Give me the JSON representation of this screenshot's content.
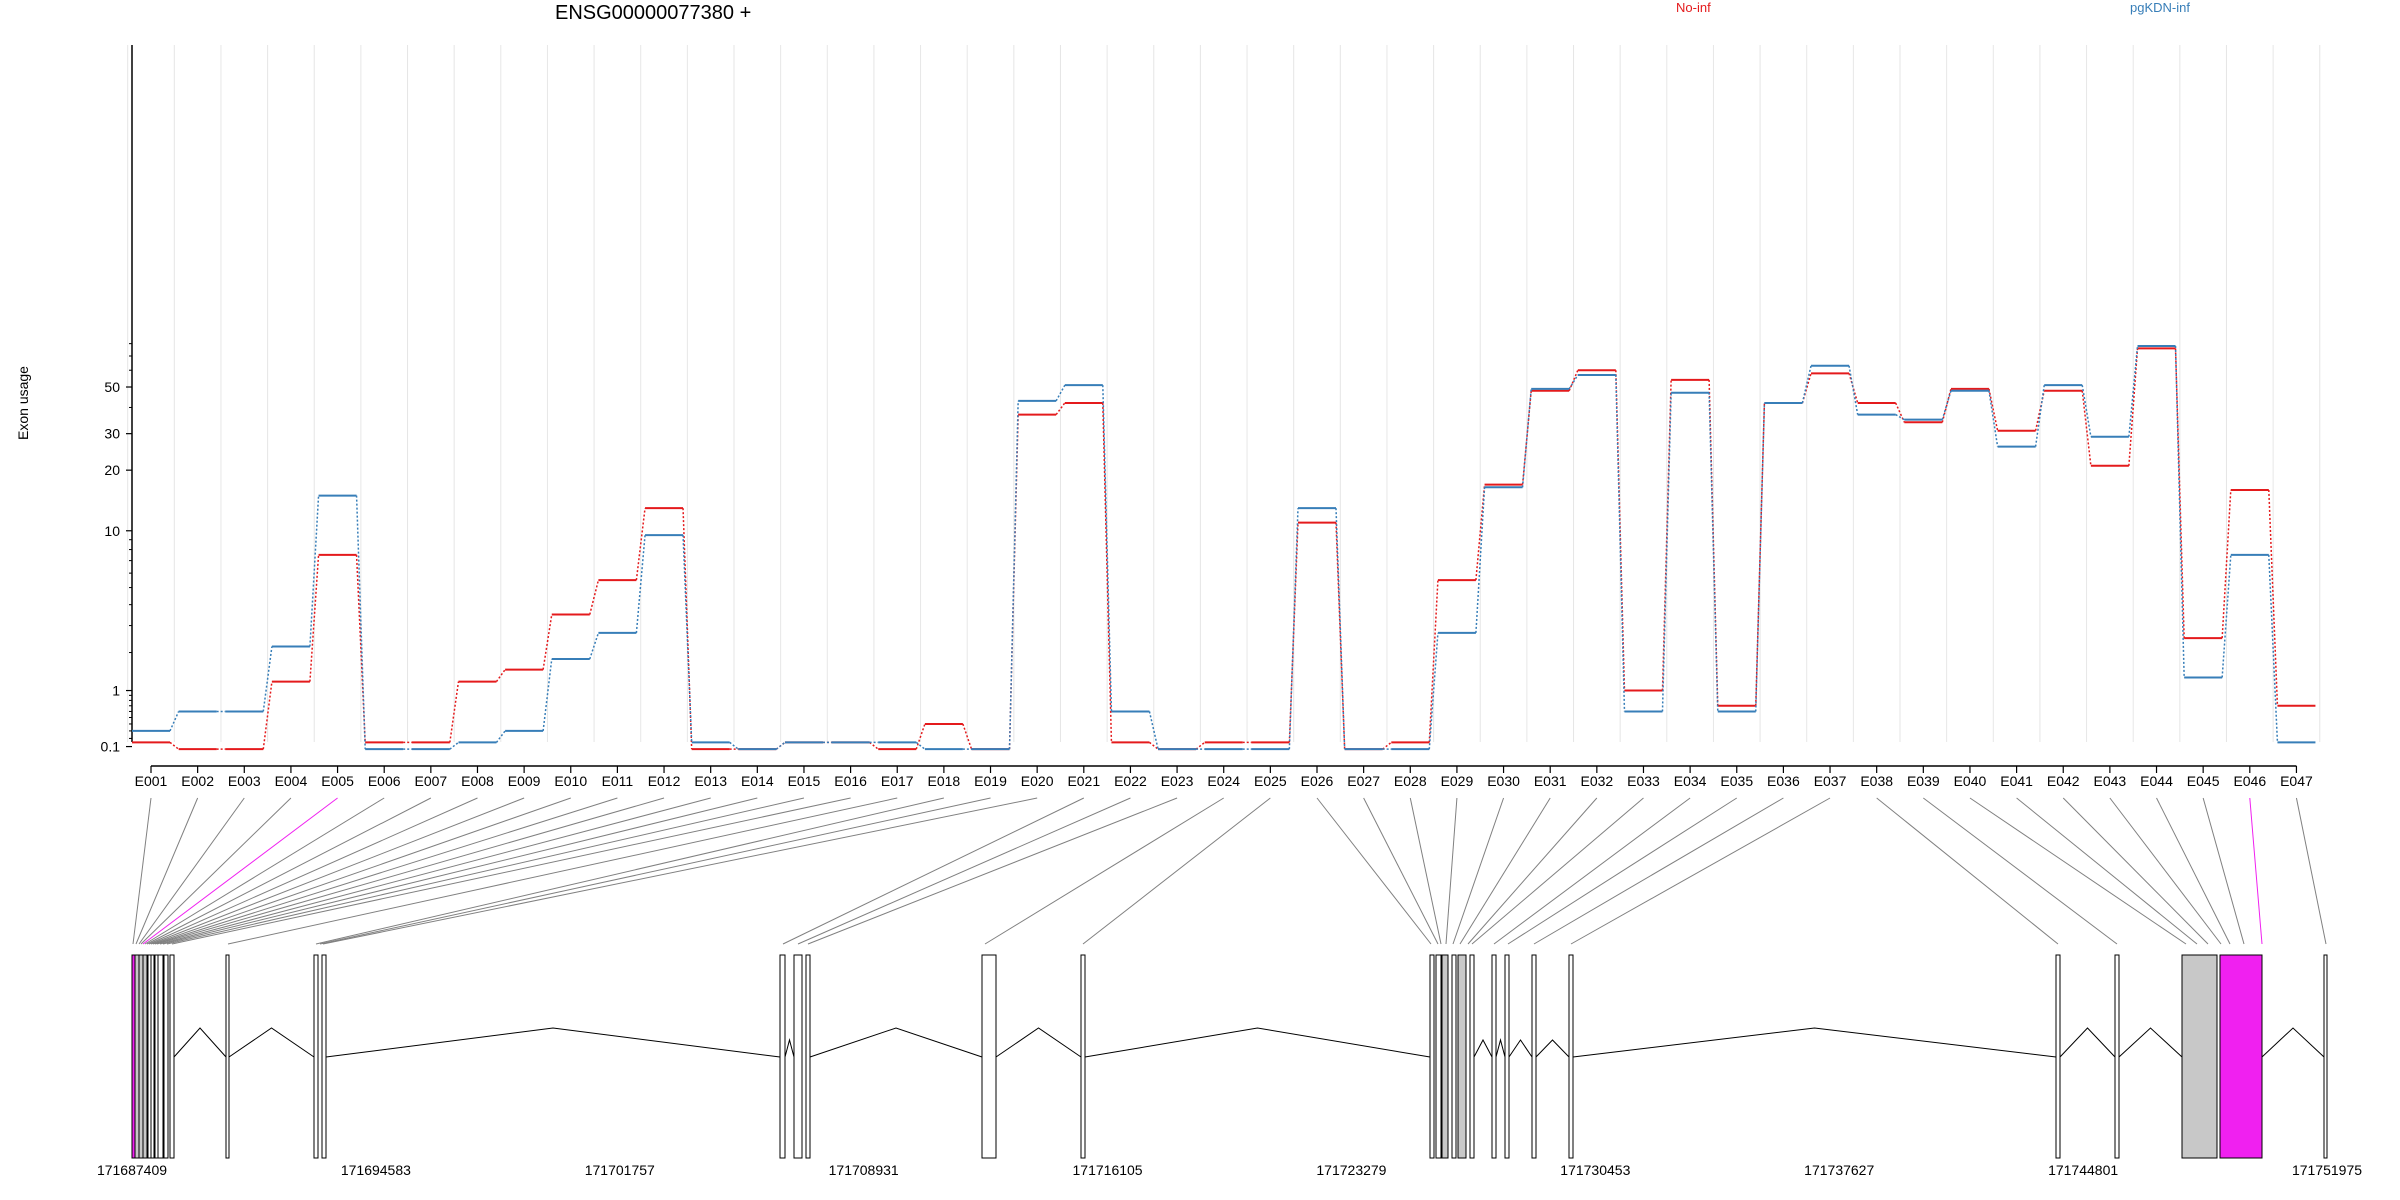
{
  "title": "ENSG00000077380 +",
  "ylabel": "Exon usage",
  "legend": [
    {
      "label": "No-inf",
      "color": "#e41a1c"
    },
    {
      "label": "pgKDN-inf",
      "color": "#377eb8"
    }
  ],
  "highlight_color": "#f020f0",
  "exon_fill": "#c8c8c8",
  "chart_data": {
    "type": "line",
    "title": "ENSG00000077380 +",
    "ylabel": "Exon usage",
    "xlabel": "",
    "yscale": "log(1+y)",
    "ylim": [
      0.07,
      90
    ],
    "yticks": [
      0.1,
      1,
      10,
      20,
      30,
      50
    ],
    "ytick_labels": [
      "0.1",
      "1",
      "10",
      "20",
      "30",
      "50"
    ],
    "categories": [
      "E001",
      "E002",
      "E003",
      "E004",
      "E005",
      "E006",
      "E007",
      "E008",
      "E009",
      "E010",
      "E011",
      "E012",
      "E013",
      "E014",
      "E015",
      "E016",
      "E017",
      "E018",
      "E019",
      "E020",
      "E021",
      "E022",
      "E023",
      "E024",
      "E025",
      "E026",
      "E027",
      "E028",
      "E029",
      "E030",
      "E031",
      "E032",
      "E033",
      "E034",
      "E035",
      "E036",
      "E037",
      "E038",
      "E039",
      "E040",
      "E041",
      "E042",
      "E043",
      "E044",
      "E045",
      "E046",
      "E047"
    ],
    "series": [
      {
        "name": "No-inf",
        "color": "#e41a1c",
        "values": [
          0.15,
          0.07,
          0.07,
          1.2,
          7.5,
          0.15,
          0.15,
          1.2,
          1.5,
          3.5,
          5.5,
          13,
          0.07,
          0.07,
          0.15,
          0.15,
          0.07,
          0.4,
          0.07,
          37,
          42,
          0.15,
          0.07,
          0.15,
          0.15,
          11,
          0.07,
          0.15,
          5.5,
          17,
          48,
          60,
          1.0,
          54,
          0.7,
          42,
          58,
          42,
          34,
          49,
          31,
          48,
          21,
          76,
          2.5,
          16,
          0.7
        ]
      },
      {
        "name": "pgKDN-inf",
        "color": "#377eb8",
        "values": [
          0.3,
          0.6,
          0.6,
          2.2,
          15,
          0.07,
          0.07,
          0.15,
          0.3,
          1.8,
          2.7,
          9.5,
          0.15,
          0.07,
          0.15,
          0.15,
          0.15,
          0.07,
          0.07,
          43,
          51,
          0.6,
          0.07,
          0.07,
          0.07,
          13,
          0.07,
          0.07,
          2.7,
          16.5,
          49,
          57,
          0.6,
          47,
          0.6,
          42,
          63,
          37,
          35,
          48,
          26,
          51,
          29,
          78,
          1.3,
          7.5,
          0.15
        ]
      }
    ],
    "genomic_axis": {
      "tick_labels": [
        "171687409",
        "171694583",
        "171701757",
        "171708931",
        "171716105",
        "171723279",
        "171730453",
        "171737627",
        "171744801",
        "171751975"
      ]
    }
  }
}
